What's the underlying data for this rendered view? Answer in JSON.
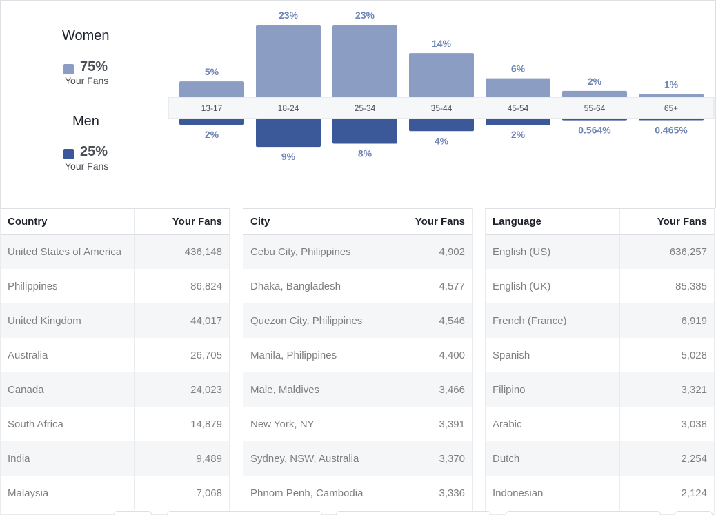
{
  "legend": {
    "women": {
      "title": "Women",
      "pct": "75%",
      "sub": "Your Fans",
      "color": "#8b9dc3"
    },
    "men": {
      "title": "Men",
      "pct": "25%",
      "sub": "Your Fans",
      "color": "#3b5998"
    }
  },
  "chart_data": {
    "type": "bar",
    "categories": [
      "13-17",
      "18-24",
      "25-34",
      "35-44",
      "45-54",
      "55-64",
      "65+"
    ],
    "series": [
      {
        "name": "Women",
        "values": [
          5,
          23,
          23,
          14,
          6,
          2,
          1
        ],
        "labels": [
          "5%",
          "23%",
          "23%",
          "14%",
          "6%",
          "2%",
          "1%"
        ],
        "color": "#8b9dc3"
      },
      {
        "name": "Men",
        "values": [
          2,
          9,
          8,
          4,
          2,
          0.564,
          0.465
        ],
        "labels": [
          "2%",
          "9%",
          "8%",
          "4%",
          "2%",
          "0.564%",
          "0.465%"
        ],
        "color": "#3b5998"
      }
    ]
  },
  "tables": {
    "country": {
      "headers": [
        "Country",
        "Your Fans"
      ],
      "rows": [
        [
          "United States of America",
          "436,148"
        ],
        [
          "Philippines",
          "86,824"
        ],
        [
          "United Kingdom",
          "44,017"
        ],
        [
          "Australia",
          "26,705"
        ],
        [
          "Canada",
          "24,023"
        ],
        [
          "South Africa",
          "14,879"
        ],
        [
          "India",
          "9,489"
        ],
        [
          "Malaysia",
          "7,068"
        ]
      ]
    },
    "city": {
      "headers": [
        "City",
        "Your Fans"
      ],
      "rows": [
        [
          "Cebu City, Philippines",
          "4,902"
        ],
        [
          "Dhaka, Bangladesh",
          "4,577"
        ],
        [
          "Quezon City, Philippines",
          "4,546"
        ],
        [
          "Manila, Philippines",
          "4,400"
        ],
        [
          "Male, Maldives",
          "3,466"
        ],
        [
          "New York, NY",
          "3,391"
        ],
        [
          "Sydney, NSW, Australia",
          "3,370"
        ],
        [
          "Phnom Penh, Cambodia",
          "3,336"
        ]
      ]
    },
    "language": {
      "headers": [
        "Language",
        "Your Fans"
      ],
      "rows": [
        [
          "English (US)",
          "636,257"
        ],
        [
          "English (UK)",
          "85,385"
        ],
        [
          "French (France)",
          "6,919"
        ],
        [
          "Spanish",
          "5,028"
        ],
        [
          "Filipino",
          "3,321"
        ],
        [
          "Arabic",
          "3,038"
        ],
        [
          "Dutch",
          "2,254"
        ],
        [
          "Indonesian",
          "2,124"
        ]
      ]
    }
  }
}
